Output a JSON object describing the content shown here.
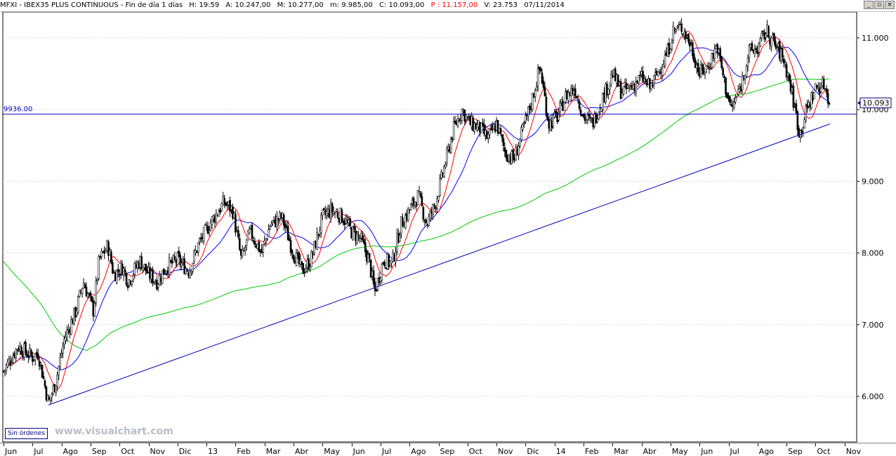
{
  "header": {
    "symbol": "MFXI - IBEX35 PLUS CONTINUOUS - Fin de día 1 días",
    "hour": "H: 19:59",
    "open": "A: 10.247,00",
    "high": "M: 10.277,00",
    "low": "m: 9.985,00",
    "close": "C: 10.093,00",
    "points": "P : 11.157,00",
    "volume": "V: 23.753",
    "date": "07/11/2014"
  },
  "window_buttons": [
    "_",
    "▫",
    "×"
  ],
  "orders_button": "Sin órdenes",
  "watermark": "www.visualchart.com",
  "colors": {
    "price": "#000000",
    "ma_fast": "#ff0000",
    "ma_mid": "#0000ff",
    "ma_slow": "#00cc00",
    "trendline": "#0000c0",
    "support": "#0000c0",
    "close_label": "#000080"
  },
  "chart_data": {
    "type": "line",
    "series_type": "candlestick",
    "ylim": [
      5.6,
      11.3
    ],
    "yticks": [
      {
        "value": 6.0,
        "label": "6.000"
      },
      {
        "value": 7.0,
        "label": "7.000"
      },
      {
        "value": 8.0,
        "label": "8.000"
      },
      {
        "value": 9.0,
        "label": "9.000"
      },
      {
        "value": 10.0,
        "label": "10.000"
      },
      {
        "value": 11.0,
        "label": "11.000"
      }
    ],
    "x_labels": [
      "Jun",
      "Jul",
      "Ago",
      "Sep",
      "Oct",
      "Nov",
      "Dic",
      "13",
      "Feb",
      "Mar",
      "Abr",
      "May",
      "Jun",
      "Jul",
      "Ago",
      "Sep",
      "Oct",
      "Nov",
      "Dic",
      "14",
      "Feb",
      "Mar",
      "Abr",
      "May",
      "Jun",
      "Jul",
      "Ago",
      "Sep",
      "Oct",
      "Nov"
    ],
    "x_months": [
      0,
      1,
      2,
      3,
      4,
      5,
      6,
      7,
      8,
      9,
      10,
      11,
      12,
      13,
      14,
      15,
      16,
      17,
      18,
      19,
      20,
      21,
      22,
      23,
      24,
      25,
      26,
      27,
      28,
      29
    ],
    "price_keypoints": [
      [
        0.0,
        6.35
      ],
      [
        0.5,
        6.7
      ],
      [
        1.0,
        6.55
      ],
      [
        1.2,
        6.6
      ],
      [
        1.55,
        5.9
      ],
      [
        1.8,
        6.2
      ],
      [
        2.1,
        6.8
      ],
      [
        2.5,
        7.2
      ],
      [
        2.75,
        7.6
      ],
      [
        3.1,
        7.2
      ],
      [
        3.3,
        7.9
      ],
      [
        3.6,
        8.1
      ],
      [
        3.8,
        7.7
      ],
      [
        4.1,
        7.8
      ],
      [
        4.3,
        7.6
      ],
      [
        4.7,
        7.9
      ],
      [
        5.0,
        7.7
      ],
      [
        5.3,
        7.6
      ],
      [
        5.6,
        7.8
      ],
      [
        6.0,
        7.9
      ],
      [
        6.4,
        7.75
      ],
      [
        6.7,
        8.1
      ],
      [
        7.1,
        8.4
      ],
      [
        7.6,
        8.7
      ],
      [
        7.9,
        8.6
      ],
      [
        8.2,
        7.9
      ],
      [
        8.5,
        8.3
      ],
      [
        8.9,
        8.0
      ],
      [
        9.2,
        8.4
      ],
      [
        9.6,
        8.5
      ],
      [
        10.0,
        8.0
      ],
      [
        10.3,
        7.75
      ],
      [
        10.6,
        7.9
      ],
      [
        11.0,
        8.5
      ],
      [
        11.3,
        8.6
      ],
      [
        11.7,
        8.5
      ],
      [
        12.0,
        8.3
      ],
      [
        12.3,
        8.2
      ],
      [
        12.6,
        7.9
      ],
      [
        12.8,
        7.45
      ],
      [
        13.1,
        7.9
      ],
      [
        13.4,
        7.85
      ],
      [
        13.7,
        8.4
      ],
      [
        14.0,
        8.6
      ],
      [
        14.3,
        8.8
      ],
      [
        14.6,
        8.4
      ],
      [
        14.9,
        8.7
      ],
      [
        15.2,
        9.2
      ],
      [
        15.5,
        9.7
      ],
      [
        15.8,
        10.0
      ],
      [
        16.1,
        9.8
      ],
      [
        16.4,
        9.75
      ],
      [
        16.7,
        9.6
      ],
      [
        17.0,
        9.8
      ],
      [
        17.3,
        9.4
      ],
      [
        17.6,
        9.3
      ],
      [
        17.9,
        9.7
      ],
      [
        18.2,
        10.1
      ],
      [
        18.5,
        10.6
      ],
      [
        18.8,
        9.8
      ],
      [
        19.1,
        9.9
      ],
      [
        19.4,
        10.2
      ],
      [
        19.7,
        10.3
      ],
      [
        20.0,
        9.9
      ],
      [
        20.3,
        9.8
      ],
      [
        20.6,
        10.1
      ],
      [
        21.0,
        10.5
      ],
      [
        21.3,
        10.25
      ],
      [
        21.6,
        10.3
      ],
      [
        22.0,
        10.45
      ],
      [
        22.3,
        10.3
      ],
      [
        22.6,
        10.55
      ],
      [
        22.9,
        10.8
      ],
      [
        23.1,
        11.1
      ],
      [
        23.4,
        11.15
      ],
      [
        23.7,
        10.9
      ],
      [
        24.0,
        10.5
      ],
      [
        24.3,
        10.6
      ],
      [
        24.6,
        10.9
      ],
      [
        24.9,
        10.3
      ],
      [
        25.1,
        10.0
      ],
      [
        25.4,
        10.3
      ],
      [
        25.7,
        10.8
      ],
      [
        26.0,
        10.85
      ],
      [
        26.3,
        11.1
      ],
      [
        26.6,
        10.9
      ],
      [
        26.9,
        10.7
      ],
      [
        27.1,
        10.4
      ],
      [
        27.3,
        10.0
      ],
      [
        27.45,
        9.65
      ],
      [
        27.7,
        10.0
      ],
      [
        28.0,
        10.3
      ],
      [
        28.3,
        10.35
      ],
      [
        28.5,
        10.09
      ]
    ],
    "support_level": 9.936,
    "support_label": "9936.00",
    "trendline": [
      [
        1.55,
        5.88
      ],
      [
        28.5,
        9.8
      ]
    ],
    "close_label": "10.093",
    "close_value": 10.093
  }
}
